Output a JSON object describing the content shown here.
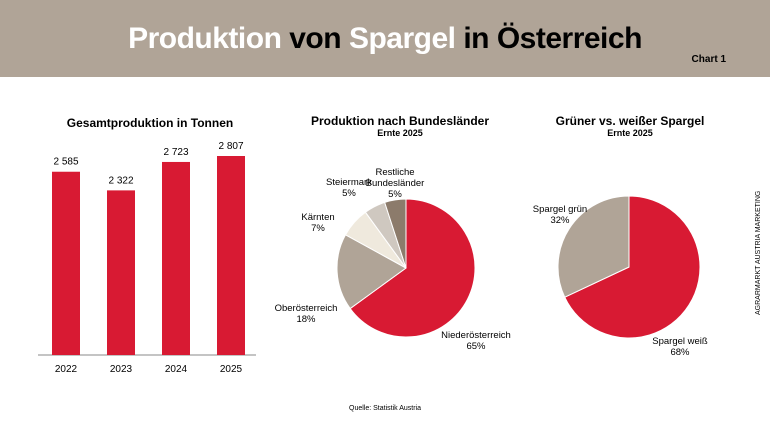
{
  "header": {
    "title_parts": [
      "Produktion",
      "von",
      "Spargel",
      "in Österreich"
    ],
    "chart_no": "Chart 1"
  },
  "source": "Quelle: Statistik Austria",
  "side_text": "AGRARMARKT AUSTRIA MARKETING",
  "colors": {
    "red": "#d81a33",
    "beige": "#b0a497"
  },
  "chart_data": [
    {
      "type": "bar",
      "title": "Gesamtproduktion in Tonnen",
      "categories": [
        "2022",
        "2023",
        "2024",
        "2025"
      ],
      "values": [
        2585,
        2322,
        2723,
        2807
      ],
      "value_labels": [
        "2 585",
        "2 322",
        "2 723",
        "2 807"
      ],
      "color": "#d81a33"
    },
    {
      "type": "pie",
      "title": "Produktion nach Bundesländer",
      "subtitle": "Ernte 2025",
      "slices": [
        {
          "label": "Niederösterreich",
          "value": 65,
          "pct": "65%",
          "color": "#d81a33"
        },
        {
          "label": "Oberösterreich",
          "value": 18,
          "pct": "18%",
          "color": "#b0a497"
        },
        {
          "label": "Kärnten",
          "value": 7,
          "pct": "7%",
          "color": "#efe9dd"
        },
        {
          "label": "Steiermark",
          "value": 5,
          "pct": "5%",
          "color": "#cfc8c0"
        },
        {
          "label": "Restliche Bundesländer",
          "value": 5,
          "pct": "5%",
          "color": "#8c7b6b"
        }
      ]
    },
    {
      "type": "pie",
      "title": "Grüner vs. weißer Spargel",
      "subtitle": "Ernte 2025",
      "slices": [
        {
          "label": "Spargel weiß",
          "value": 68,
          "pct": "68%",
          "color": "#d81a33"
        },
        {
          "label": "Spargel grün",
          "value": 32,
          "pct": "32%",
          "color": "#b0a497"
        }
      ]
    }
  ]
}
